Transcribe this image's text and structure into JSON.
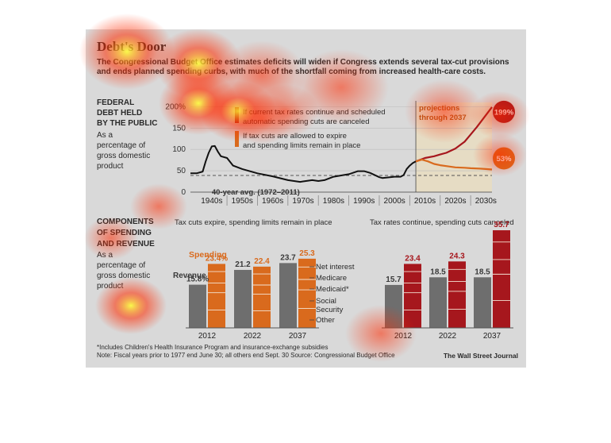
{
  "title": "Debt's Door",
  "subtitle": "The Congressional Budget Office estimates deficits will widen if Congress extends several tax-cut provisions and ends planned spending curbs, with much of the shortfall coming from increased health-care costs.",
  "colors": {
    "panel": "#d9d9d9",
    "red": "#a6171d",
    "orange": "#d96a1d",
    "gray": "#6e6e6e",
    "heat_core": "#ffff33",
    "heat_edge": "#ff2a00"
  },
  "debt_section": {
    "heading": "FEDERAL DEBT HELD BY THE PUBLIC",
    "heading_lines": [
      "FEDERAL",
      "DEBT HELD",
      "BY THE PUBLIC"
    ],
    "subheading_lines": [
      "As a",
      "percentage of",
      "gross domestic",
      "product"
    ]
  },
  "spending_section": {
    "heading_lines": [
      "COMPONENTS",
      "OF SPENDING",
      "AND REVENUE"
    ],
    "subheading_lines": [
      "As a",
      "percentage of",
      "gross domestic",
      "product"
    ]
  },
  "footnotes": {
    "line1": "*Includes Children's Health Insurance Program and insurance-exchange subsidies",
    "line2": "Note: Fiscal years prior to 1977 end June 30; all others end Sept. 30   Source: Congressional Budget Office",
    "credit": "The Wall Street Journal"
  },
  "chart_data": [
    {
      "type": "line",
      "title": "FEDERAL DEBT HELD BY THE PUBLIC",
      "ylabel": "As a percentage of gross domestic product",
      "ylim": [
        0,
        210
      ],
      "y_ticks": [
        "200%",
        "150",
        "100",
        "50",
        "0"
      ],
      "y_tick_values": [
        200,
        150,
        100,
        50,
        0
      ],
      "x_tick_labels": [
        "1940s",
        "1950s",
        "1960s",
        "1970s",
        "1980s",
        "1990s",
        "2000s",
        "2010s",
        "2020s",
        "2030s"
      ],
      "xlim": [
        1938,
        2037
      ],
      "average": {
        "value": 39,
        "label": "40-year avg. (1972–2011)"
      },
      "projection_start": 2012,
      "projection_label_lines": [
        "projections",
        "through 2037"
      ],
      "legend": [
        {
          "color": "#a6171d",
          "lines": [
            "If current tax rates continue and scheduled",
            "automatic spending cuts are canceled"
          ]
        },
        {
          "color": "#d96a1d",
          "lines": [
            "If tax cuts are allowed to expire",
            "and spending limits remain in place"
          ]
        }
      ],
      "series": [
        {
          "name": "historical",
          "x": [
            1938,
            1940,
            1942,
            1943,
            1944,
            1945,
            1946,
            1947,
            1948,
            1950,
            1952,
            1955,
            1958,
            1960,
            1965,
            1970,
            1974,
            1975,
            1978,
            1980,
            1982,
            1985,
            1990,
            1993,
            1995,
            1997,
            2000,
            2001,
            2005,
            2007,
            2008,
            2009,
            2010,
            2011,
            2012
          ],
          "values": [
            44,
            44,
            48,
            72,
            92,
            107,
            108,
            95,
            84,
            80,
            62,
            54,
            48,
            44,
            37,
            28,
            24,
            25,
            28,
            26,
            28,
            36,
            42,
            49,
            49,
            45,
            35,
            33,
            36,
            36,
            40,
            54,
            62,
            68,
            72
          ]
        },
        {
          "name": "Tax rates continue, spending cuts canceled",
          "x": [
            2012,
            2015,
            2018,
            2020,
            2022,
            2025,
            2028,
            2030,
            2032,
            2035,
            2037
          ],
          "values": [
            72,
            80,
            84,
            88,
            92,
            102,
            118,
            135,
            152,
            180,
            199
          ]
        },
        {
          "name": "Tax cuts expire, spending limits remain in place",
          "x": [
            2012,
            2014,
            2016,
            2018,
            2020,
            2022,
            2025,
            2028,
            2030,
            2033,
            2035,
            2037
          ],
          "values": [
            72,
            76,
            72,
            66,
            63,
            61,
            58,
            57,
            56,
            55,
            54,
            53
          ]
        }
      ],
      "end_labels": [
        {
          "label": "199%",
          "color": "#a6171d"
        },
        {
          "label": "53%",
          "color": "#d96a1d"
        }
      ]
    },
    {
      "type": "bar",
      "title": "Tax cuts expire, spending limits remain in place",
      "categories": [
        "2012",
        "2022",
        "2037"
      ],
      "revenue": [
        15.8,
        21.2,
        23.7
      ],
      "spending": [
        23.4,
        22.4,
        25.3
      ],
      "revenue_labels": [
        "15.8%",
        "21.2",
        "23.7"
      ],
      "spending_labels": [
        "23.4%",
        "22.4",
        "25.3"
      ],
      "spending_heading": "Spending",
      "revenue_heading": "Revenue",
      "components": [
        "Net interest",
        "Medicare",
        "Medicaid*",
        "Social Security",
        "Other"
      ],
      "component_lines": [
        [
          "Net interest"
        ],
        [
          "Medicare"
        ],
        [
          "Medicaid*"
        ],
        [
          "Social",
          "Security"
        ],
        [
          "Other"
        ]
      ],
      "ylim": [
        0,
        36
      ]
    },
    {
      "type": "bar",
      "title": "Tax rates continue, spending cuts canceled",
      "categories": [
        "2012",
        "2022",
        "2037"
      ],
      "revenue": [
        15.7,
        18.5,
        18.5
      ],
      "spending": [
        23.4,
        24.3,
        35.7
      ],
      "revenue_labels": [
        "15.7",
        "18.5",
        "18.5"
      ],
      "spending_labels": [
        "23.4",
        "24.3",
        "35.7"
      ],
      "ylim": [
        0,
        36
      ]
    }
  ]
}
